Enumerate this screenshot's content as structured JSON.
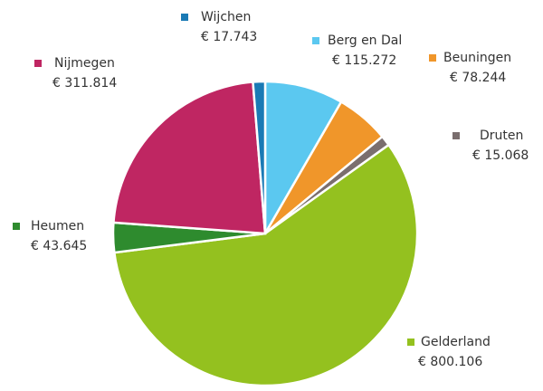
{
  "chart_data": {
    "type": "pie",
    "categories": [
      "Berg en Dal",
      "Beuningen",
      "Druten",
      "Gelderland",
      "Heumen",
      "Nijmegen",
      "Wijchen"
    ],
    "values": [
      115272,
      78244,
      15068,
      800106,
      43645,
      311814,
      17743
    ],
    "value_labels": [
      "€ 115.272",
      "€ 78.244",
      "€ 15.068",
      "€ 800.106",
      "€ 43.645",
      "€ 311.814",
      "€ 17.743"
    ],
    "colors": [
      "#5bc8f0",
      "#f0962a",
      "#7a6e6e",
      "#94c11f",
      "#2e8b2e",
      "#bf2662",
      "#1a7ab5"
    ]
  }
}
